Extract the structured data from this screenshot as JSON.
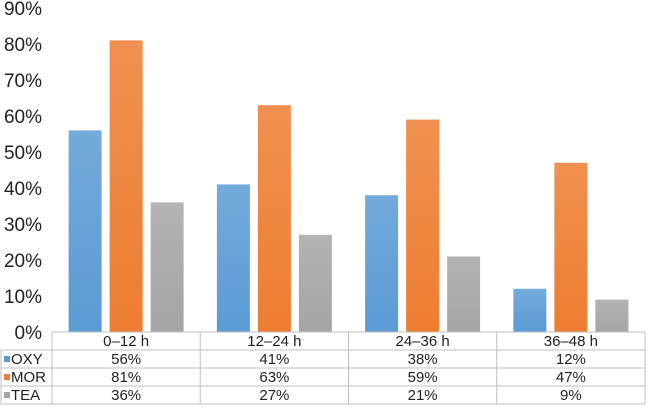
{
  "chart_data": {
    "type": "bar",
    "categories": [
      "0–12 h",
      "12–24 h",
      "24–36 h",
      "36–48 h"
    ],
    "series": [
      {
        "name": "OXY",
        "values": [
          56,
          41,
          38,
          12
        ],
        "labels": [
          "56%",
          "41%",
          "38%",
          "12%"
        ],
        "color": "#5b9bd5"
      },
      {
        "name": "MOR",
        "values": [
          81,
          63,
          59,
          47
        ],
        "labels": [
          "81%",
          "63%",
          "59%",
          "47%"
        ],
        "color": "#ed7d31"
      },
      {
        "name": "TEA",
        "values": [
          36,
          27,
          21,
          9
        ],
        "labels": [
          "36%",
          "27%",
          "21%",
          "9%"
        ],
        "color": "#a5a5a5"
      }
    ],
    "y_ticks": [
      "0%",
      "10%",
      "20%",
      "30%",
      "40%",
      "50%",
      "60%",
      "70%",
      "80%",
      "90%"
    ],
    "ylim": [
      0,
      90
    ],
    "grid": false,
    "legend": "data-table rows below x-axis"
  }
}
